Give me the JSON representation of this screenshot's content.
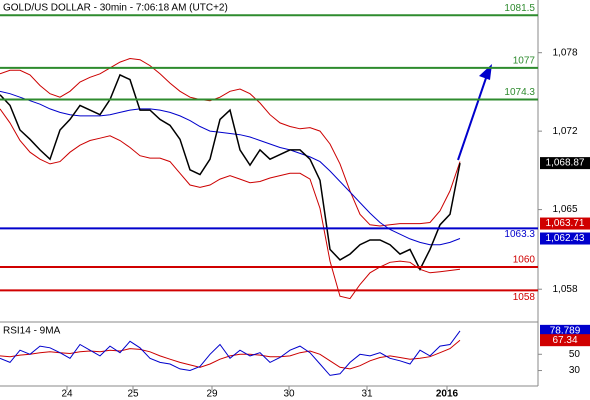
{
  "chart_data": {
    "type": "line",
    "title": "GOLD/US DOLLAR - 30min - 7:06:18 AM (UTC+2)",
    "xlim": [
      0,
      53.8
    ],
    "xticks": [
      {
        "value": 6.7,
        "label": "24"
      },
      {
        "value": 13.3,
        "label": "25"
      },
      {
        "value": 21.2,
        "label": "29"
      },
      {
        "value": 28.9,
        "label": "30"
      },
      {
        "value": 36.7,
        "label": "31"
      },
      {
        "value": 44.7,
        "label": "2016"
      }
    ],
    "ylim": [
      1055.3,
      1082.8
    ],
    "yticks": [
      {
        "value": 1078.3,
        "label": "1,078"
      },
      {
        "value": 1071.6,
        "label": "1,072"
      },
      {
        "value": 1064.9,
        "label": "1,065"
      },
      {
        "value": 1058.1,
        "label": "1,058"
      }
    ],
    "series": [
      {
        "name": "price",
        "color": "#000000",
        "values": [
          1074.7,
          1073.8,
          1071.7,
          1070.9,
          1070.0,
          1069.2,
          1071.7,
          1072.6,
          1073.8,
          1073.4,
          1073.0,
          1074.3,
          1076.4,
          1076.0,
          1073.4,
          1073.4,
          1072.6,
          1072.1,
          1070.9,
          1068.3,
          1067.9,
          1069.2,
          1072.6,
          1073.4,
          1070.0,
          1068.7,
          1070.0,
          1069.2,
          1069.6,
          1070.0,
          1070.0,
          1069.2,
          1067.4,
          1061.5,
          1060.6,
          1061.1,
          1061.9,
          1062.3,
          1062.3,
          1061.9,
          1061.1,
          1061.5,
          1059.8,
          1061.5,
          1063.6,
          1064.5,
          1068.87
        ]
      },
      {
        "name": "ma",
        "color": "#0000cc",
        "values": [
          1075.0,
          1074.8,
          1074.5,
          1074.2,
          1073.9,
          1073.5,
          1073.2,
          1073.0,
          1072.9,
          1072.9,
          1072.9,
          1073.0,
          1073.2,
          1073.4,
          1073.5,
          1073.5,
          1073.4,
          1073.2,
          1072.9,
          1072.5,
          1072.0,
          1071.6,
          1071.5,
          1071.4,
          1071.3,
          1071.1,
          1070.8,
          1070.5,
          1070.2,
          1070.0,
          1069.7,
          1069.4,
          1069.0,
          1068.2,
          1067.3,
          1066.4,
          1065.5,
          1064.6,
          1063.8,
          1063.2,
          1062.8,
          1062.4,
          1062.1,
          1061.9,
          1061.9,
          1062.1,
          1062.43
        ]
      },
      {
        "name": "upper",
        "color": "#cc0000",
        "values": [
          1076.5,
          1076.8,
          1076.8,
          1076.4,
          1075.5,
          1074.8,
          1074.5,
          1075,
          1075.8,
          1076.2,
          1076.5,
          1077,
          1077.5,
          1077.8,
          1077.7,
          1077.2,
          1076.5,
          1075.7,
          1075,
          1074.5,
          1074.3,
          1074.2,
          1074.5,
          1075,
          1075.2,
          1074.8,
          1074,
          1073,
          1072.3,
          1072.0,
          1071.8,
          1071.9,
          1071.6,
          1070.5,
          1068.8,
          1066.5,
          1064.5,
          1063.6,
          1063.5,
          1063.6,
          1063.7,
          1063.7,
          1063.7,
          1063.8,
          1064.8,
          1066.5,
          1069.0
        ]
      },
      {
        "name": "lower",
        "color": "#cc0000",
        "values": [
          1073.5,
          1072.3,
          1070.8,
          1069.8,
          1069.2,
          1068.8,
          1069,
          1069.8,
          1070.4,
          1070.8,
          1071,
          1071.2,
          1070.8,
          1070.2,
          1069.5,
          1069.3,
          1069.3,
          1069,
          1068,
          1067,
          1066.8,
          1067,
          1067.5,
          1067.8,
          1067.5,
          1067.2,
          1067.3,
          1067.6,
          1067.8,
          1068,
          1068,
          1067.5,
          1065,
          1060.5,
          1057.5,
          1057.3,
          1058.5,
          1059.5,
          1060,
          1060.4,
          1060.5,
          1060.4,
          1059.8,
          1059.5,
          1059.6,
          1059.7,
          1059.8
        ]
      }
    ],
    "levels": [
      {
        "value": 1081.5,
        "color": "#2e8b2e"
      },
      {
        "value": 1077,
        "color": "#2e8b2e"
      },
      {
        "value": 1074.3,
        "color": "#2e8b2e"
      },
      {
        "value": 1063.3,
        "color": "#0000cc"
      },
      {
        "value": 1060,
        "color": "#d00000"
      },
      {
        "value": 1058,
        "color": "#d00000"
      }
    ],
    "markers": [
      {
        "value": 1068.87,
        "label": "1,068.87",
        "color": "#000000"
      },
      {
        "value": 1063.71,
        "label": "1,063.71",
        "color": "#d00000"
      },
      {
        "value": 1062.43,
        "label": "1,062.43",
        "color": "#0000cc"
      }
    ],
    "rsi": {
      "title": "RSI14 - 9MA",
      "ylim": [
        11,
        86
      ],
      "yticks": [
        50,
        30
      ],
      "series": [
        {
          "name": "rsi",
          "color": "#0000cc",
          "values": [
            45,
            40,
            55,
            50,
            60,
            58,
            52,
            45,
            62,
            55,
            48,
            60,
            52,
            66,
            58,
            45,
            40,
            38,
            32,
            30,
            35,
            50,
            62,
            45,
            55,
            48,
            52,
            40,
            46,
            55,
            60,
            52,
            38,
            24,
            26,
            40,
            50,
            48,
            52,
            45,
            42,
            38,
            55,
            48,
            60,
            62,
            78.789
          ]
        },
        {
          "name": "rsi-ma",
          "color": "#cc0000",
          "values": [
            48,
            47,
            49,
            50,
            52,
            53,
            52,
            51,
            53,
            54,
            53,
            55,
            54,
            57,
            56,
            53,
            48,
            44,
            40,
            37,
            34,
            38,
            44,
            48,
            50,
            50,
            49,
            47,
            47,
            48,
            52,
            54,
            50,
            42,
            34,
            32,
            36,
            42,
            46,
            48,
            46,
            44,
            45,
            47,
            52,
            57,
            67.34
          ]
        }
      ],
      "markers": [
        {
          "value": 78.789,
          "color": "#0000cc"
        },
        {
          "value": 67.34,
          "color": "#d00000"
        }
      ]
    }
  }
}
